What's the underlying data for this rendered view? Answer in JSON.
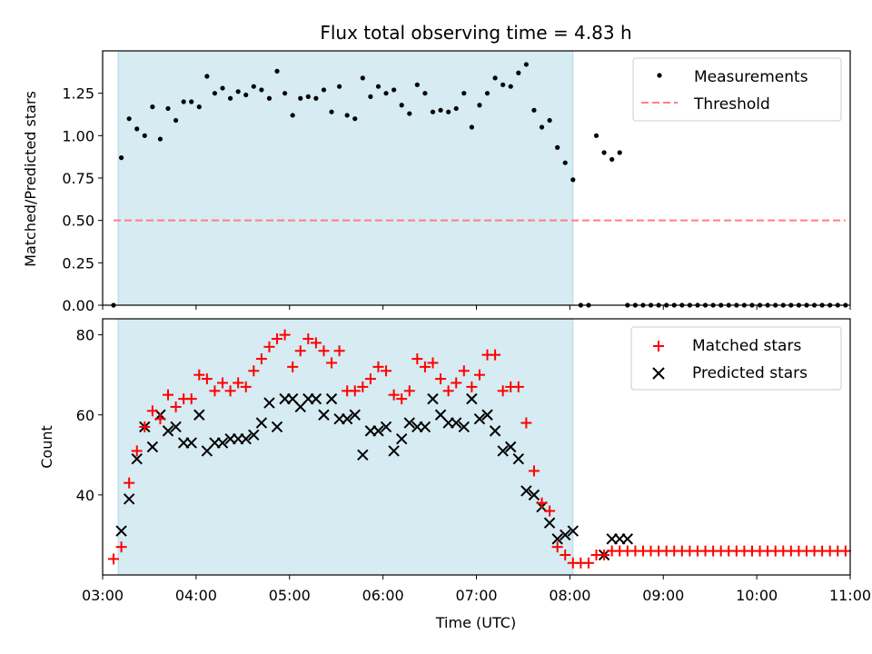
{
  "title": "Flux total observing time = 4.83 h",
  "colors": {
    "shade": "#add8e6",
    "threshold": "#ff7f7f",
    "matched": "#ff0000",
    "predicted": "#000000",
    "measurements": "#000000"
  },
  "chart_data": [
    {
      "type": "scatter",
      "panel": "top",
      "ylabel": "Matched/Predicted stars",
      "xlim": [
        3.0,
        11.0
      ],
      "ylim": [
        0.0,
        1.5
      ],
      "yticks": [
        "0.00",
        "0.25",
        "0.50",
        "0.75",
        "1.00",
        "1.25"
      ],
      "grid": false,
      "legend_position": "top-right",
      "shaded_interval": [
        "03:10",
        "08:02"
      ],
      "series": [
        {
          "name": "Measurements",
          "marker": "dot",
          "x": [
            "03:07",
            "03:12",
            "03:17",
            "03:22",
            "03:27",
            "03:32",
            "03:37",
            "03:42",
            "03:47",
            "03:52",
            "03:57",
            "04:02",
            "04:07",
            "04:12",
            "04:17",
            "04:22",
            "04:27",
            "04:32",
            "04:37",
            "04:42",
            "04:47",
            "04:52",
            "04:57",
            "05:02",
            "05:07",
            "05:12",
            "05:17",
            "05:22",
            "05:27",
            "05:32",
            "05:37",
            "05:42",
            "05:47",
            "05:52",
            "05:57",
            "06:02",
            "06:07",
            "06:12",
            "06:17",
            "06:22",
            "06:27",
            "06:32",
            "06:37",
            "06:42",
            "06:47",
            "06:52",
            "06:57",
            "07:02",
            "07:07",
            "07:12",
            "07:17",
            "07:22",
            "07:27",
            "07:32",
            "07:37",
            "07:42",
            "07:47",
            "07:52",
            "07:57",
            "08:02",
            "08:07",
            "08:12",
            "08:17",
            "08:22",
            "08:27",
            "08:32",
            "08:37",
            "08:42",
            "08:47",
            "08:52",
            "08:57",
            "09:02",
            "09:07",
            "09:12",
            "09:17",
            "09:22",
            "09:27",
            "09:32",
            "09:37",
            "09:42",
            "09:47",
            "09:52",
            "09:57",
            "10:02",
            "10:07",
            "10:12",
            "10:17",
            "10:22",
            "10:27",
            "10:32",
            "10:37",
            "10:42",
            "10:47",
            "10:52",
            "10:57"
          ],
          "y": [
            0.0,
            0.87,
            1.1,
            1.04,
            1.0,
            1.17,
            0.98,
            1.16,
            1.09,
            1.2,
            1.2,
            1.17,
            1.35,
            1.25,
            1.28,
            1.22,
            1.26,
            1.24,
            1.29,
            1.27,
            1.22,
            1.38,
            1.25,
            1.12,
            1.22,
            1.23,
            1.22,
            1.27,
            1.14,
            1.29,
            1.12,
            1.1,
            1.34,
            1.23,
            1.29,
            1.25,
            1.27,
            1.18,
            1.13,
            1.3,
            1.25,
            1.14,
            1.15,
            1.14,
            1.16,
            1.25,
            1.05,
            1.18,
            1.25,
            1.34,
            1.3,
            1.29,
            1.37,
            1.42,
            1.15,
            1.05,
            1.09,
            0.93,
            0.84,
            0.74,
            0.0,
            0.0,
            1.0,
            0.9,
            0.86,
            0.9,
            0.0,
            0.0,
            0.0,
            0.0,
            0.0,
            0.0,
            0.0,
            0.0,
            0.0,
            0.0,
            0.0,
            0.0,
            0.0,
            0.0,
            0.0,
            0.0,
            0.0,
            0.0,
            0.0,
            0.0,
            0.0,
            0.0,
            0.0,
            0.0,
            0.0,
            0.0,
            0.0,
            0.0,
            0.0
          ]
        },
        {
          "name": "Threshold",
          "marker": "dashed-line",
          "x": [
            "03:07",
            "10:57"
          ],
          "y": [
            0.5,
            0.5
          ]
        }
      ]
    },
    {
      "type": "scatter",
      "panel": "bottom",
      "xlabel": "Time (UTC)",
      "ylabel": "Count",
      "xlim": [
        3.0,
        11.0
      ],
      "ylim": [
        20.0,
        84.0
      ],
      "yticks": [
        "40",
        "60",
        "80"
      ],
      "xticks": [
        "03:00",
        "04:00",
        "05:00",
        "06:00",
        "07:00",
        "08:00",
        "09:00",
        "10:00",
        "11:00"
      ],
      "grid": false,
      "legend_position": "top-right",
      "shaded_interval": [
        "03:10",
        "08:02"
      ],
      "series": [
        {
          "name": "Matched stars",
          "marker": "plus",
          "x": [
            "03:07",
            "03:12",
            "03:17",
            "03:22",
            "03:27",
            "03:32",
            "03:37",
            "03:42",
            "03:47",
            "03:52",
            "03:57",
            "04:02",
            "04:07",
            "04:12",
            "04:17",
            "04:22",
            "04:27",
            "04:32",
            "04:37",
            "04:42",
            "04:47",
            "04:52",
            "04:57",
            "05:02",
            "05:07",
            "05:12",
            "05:17",
            "05:22",
            "05:27",
            "05:32",
            "05:37",
            "05:42",
            "05:47",
            "05:52",
            "05:57",
            "06:02",
            "06:07",
            "06:12",
            "06:17",
            "06:22",
            "06:27",
            "06:32",
            "06:37",
            "06:42",
            "06:47",
            "06:52",
            "06:57",
            "07:02",
            "07:07",
            "07:12",
            "07:17",
            "07:22",
            "07:27",
            "07:32",
            "07:37",
            "07:42",
            "07:47",
            "07:52",
            "07:57",
            "08:02",
            "08:07",
            "08:12",
            "08:17",
            "08:22",
            "08:27",
            "08:32",
            "08:37",
            "08:42",
            "08:47",
            "08:52",
            "08:57",
            "09:02",
            "09:07",
            "09:12",
            "09:17",
            "09:22",
            "09:27",
            "09:32",
            "09:37",
            "09:42",
            "09:47",
            "09:52",
            "09:57",
            "10:02",
            "10:07",
            "10:12",
            "10:17",
            "10:22",
            "10:27",
            "10:32",
            "10:37",
            "10:42",
            "10:47",
            "10:52",
            "10:57"
          ],
          "y": [
            24,
            27,
            43,
            51,
            57,
            61,
            59,
            65,
            62,
            64,
            64,
            70,
            69,
            66,
            68,
            66,
            68,
            67,
            71,
            74,
            77,
            79,
            80,
            72,
            76,
            79,
            78,
            76,
            73,
            76,
            66,
            66,
            67,
            69,
            72,
            71,
            65,
            64,
            66,
            74,
            72,
            73,
            69,
            66,
            68,
            71,
            67,
            70,
            75,
            75,
            66,
            67,
            67,
            58,
            46,
            38,
            36,
            27,
            25,
            23,
            23,
            23,
            25,
            25,
            26,
            26,
            26,
            26,
            26,
            26,
            26,
            26,
            26,
            26,
            26,
            26,
            26,
            26,
            26,
            26,
            26,
            26,
            26,
            26,
            26,
            26,
            26,
            26,
            26,
            26,
            26,
            26,
            26,
            26,
            26
          ]
        },
        {
          "name": "Predicted stars",
          "marker": "x",
          "x": [
            "03:12",
            "03:17",
            "03:22",
            "03:27",
            "03:32",
            "03:37",
            "03:42",
            "03:47",
            "03:52",
            "03:57",
            "04:02",
            "04:07",
            "04:12",
            "04:17",
            "04:22",
            "04:27",
            "04:32",
            "04:37",
            "04:42",
            "04:47",
            "04:52",
            "04:57",
            "05:02",
            "05:07",
            "05:12",
            "05:17",
            "05:22",
            "05:27",
            "05:32",
            "05:37",
            "05:42",
            "05:47",
            "05:52",
            "05:57",
            "06:02",
            "06:07",
            "06:12",
            "06:17",
            "06:22",
            "06:27",
            "06:32",
            "06:37",
            "06:42",
            "06:47",
            "06:52",
            "06:57",
            "07:02",
            "07:07",
            "07:12",
            "07:17",
            "07:22",
            "07:27",
            "07:32",
            "07:37",
            "07:42",
            "07:47",
            "07:52",
            "07:57",
            "08:02",
            "08:22",
            "08:27",
            "08:32",
            "08:37"
          ],
          "y": [
            31,
            39,
            49,
            57,
            52,
            60,
            56,
            57,
            53,
            53,
            60,
            51,
            53,
            53,
            54,
            54,
            54,
            55,
            58,
            63,
            57,
            64,
            64,
            62,
            64,
            64,
            60,
            64,
            59,
            59,
            60,
            50,
            56,
            56,
            57,
            51,
            54,
            58,
            57,
            57,
            64,
            60,
            58,
            58,
            57,
            64,
            59,
            60,
            56,
            51,
            52,
            49,
            41,
            40,
            37,
            33,
            29,
            30,
            31,
            25,
            29,
            29,
            29
          ]
        }
      ]
    }
  ]
}
